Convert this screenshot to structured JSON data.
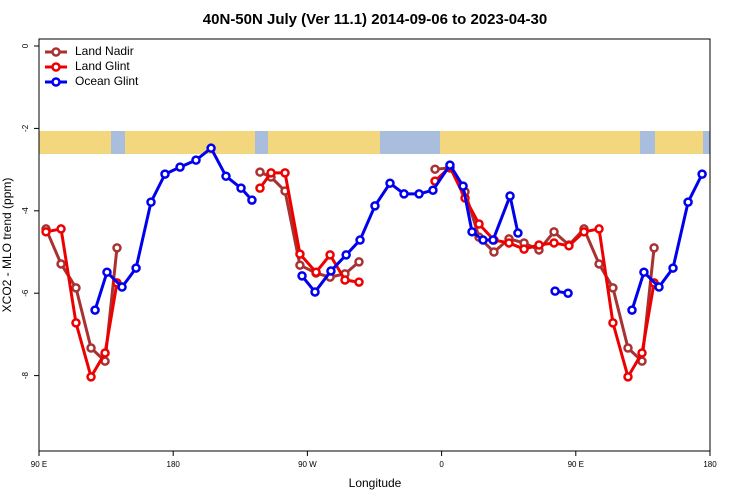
{
  "chart_data": {
    "type": "line",
    "title": "40N-50N July (Ver 11.1)   2014-09-06 to 2023-04-30",
    "x_label": "Longitude",
    "y_label": "XCO2 - MLO trend (ppm)",
    "xlim": [
      90,
      540
    ],
    "xticks": [
      {
        "value": 90,
        "label": "90 E"
      },
      180,
      {
        "value": 270,
        "label": "90 W"
      },
      {
        "value": 360,
        "label": "0"
      },
      {
        "value": 450,
        "label": "90 E"
      },
      {
        "value": 540,
        "label": "180"
      }
    ],
    "ylim": [
      -9.83,
      0.17
    ],
    "yticks": [
      0,
      -2,
      -4,
      -6,
      -8
    ],
    "legend": "topleft",
    "series": [
      {
        "name": "Land Nadir",
        "color": "#a83232",
        "x": [
          94.7,
          104.8,
          114.8,
          124.9,
          134.3,
          142.3,
          null,
          238.2,
          245.6,
          255.0,
          265.0,
          275.8,
          285.2,
          295.2,
          304.6,
          null,
          355.6,
          365.6,
          375.7,
          385.1,
          395.1,
          405.2,
          415.3,
          425.3,
          435.4,
          445.4,
          455.5,
          465.6,
          474.9,
          485.0,
          494.4,
          502.5
        ],
        "values": [
          -4.44,
          -5.29,
          -5.87,
          -7.33,
          -7.65,
          -4.9,
          null,
          -3.06,
          -3.18,
          -3.52,
          -5.32,
          -5.51,
          -5.61,
          -5.53,
          -5.24,
          null,
          -2.99,
          -2.96,
          -3.54,
          -4.64,
          -5.0,
          -4.68,
          -4.78,
          -4.95,
          -4.51,
          -4.83,
          -4.44,
          -5.29,
          -5.87,
          -7.33,
          -7.65,
          -4.9
        ]
      },
      {
        "name": "Land Glint",
        "color": "#ee0000",
        "x": [
          94.7,
          104.8,
          114.8,
          124.9,
          134.3,
          142.3,
          null,
          238.2,
          245.6,
          255.0,
          265.0,
          275.8,
          285.2,
          295.2,
          304.6,
          null,
          355.6,
          365.6,
          375.7,
          385.1,
          395.1,
          405.2,
          415.3,
          425.3,
          435.4,
          445.4,
          455.5,
          465.6,
          474.9,
          485.0,
          494.4,
          502.5
        ],
        "values": [
          -4.51,
          -4.44,
          -6.72,
          -8.03,
          -7.45,
          -5.75,
          null,
          -3.45,
          -3.08,
          -3.08,
          -5.05,
          -5.49,
          -5.07,
          -5.68,
          -5.73,
          null,
          -3.28,
          -2.94,
          -3.69,
          -4.32,
          -4.71,
          -4.78,
          -4.93,
          -4.83,
          -4.78,
          -4.85,
          -4.51,
          -4.44,
          -6.72,
          -8.03,
          -7.45,
          -5.75
        ]
      },
      {
        "name": "Ocean Glint",
        "color": "#0000ee",
        "x": [
          127.6,
          135.6,
          145.7,
          155.1,
          165.1,
          174.5,
          184.6,
          195.3,
          205.4,
          215.4,
          225.5,
          232.8,
          null,
          266.4,
          275.1,
          285.8,
          296.0,
          305.3,
          315.3,
          325.4,
          334.8,
          344.9,
          354.2,
          365.6,
          374.4,
          380.4,
          387.8,
          394.5,
          405.9,
          411.2,
          null,
          436.1,
          444.8,
          null,
          487.7,
          495.7,
          505.8,
          515.2,
          525.3,
          534.7
        ],
        "values": [
          -6.41,
          -5.49,
          -5.85,
          -5.39,
          -3.79,
          -3.11,
          -2.94,
          -2.77,
          -2.48,
          -3.16,
          -3.45,
          -3.74,
          null,
          -5.58,
          -5.97,
          -5.46,
          -5.07,
          -4.71,
          -3.88,
          -3.33,
          -3.59,
          -3.59,
          -3.5,
          -2.89,
          -3.4,
          -4.51,
          -4.71,
          -4.71,
          -3.64,
          -4.54,
          null,
          -5.95,
          -6.0,
          null,
          -6.41,
          -5.49,
          -5.85,
          -5.39,
          -3.79,
          -3.11
        ]
      }
    ]
  }
}
